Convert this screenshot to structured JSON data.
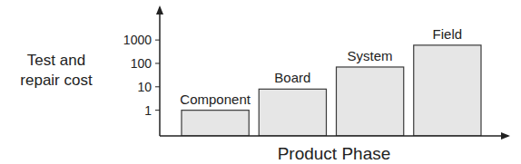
{
  "chart_data": {
    "type": "bar",
    "x_label": "Product Phase",
    "y_label": "Test and repair cost",
    "categories": [
      "Component",
      "Board",
      "System",
      "Field"
    ],
    "values": [
      1,
      8,
      70,
      600
    ],
    "color": "#e6e6e6",
    "log": "y",
    "ylim": [
      0.08,
      25000
    ],
    "yticks": [
      1,
      10,
      100,
      1000
    ],
    "grid": false
  }
}
